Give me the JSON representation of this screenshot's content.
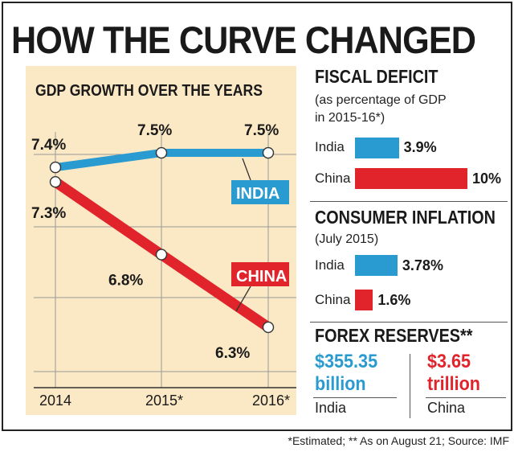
{
  "title": "HOW THE CURVE CHANGED",
  "footnote": "*Estimated; ** As on August 21; Source: IMF",
  "colors": {
    "india": "#2a9bd0",
    "china": "#e1242b",
    "panel": "#fbe8c4"
  },
  "chart_data": [
    {
      "type": "line",
      "title": "GDP GROWTH OVER THE YEARS",
      "categories": [
        "2014",
        "2015",
        "2016"
      ],
      "category_labels": [
        "2014",
        "2015*",
        "2016*"
      ],
      "ylim": [
        6.2,
        7.55
      ],
      "grid": true,
      "series": [
        {
          "name": "INDIA",
          "values": [
            7.4,
            7.5,
            7.5
          ],
          "labels": [
            "7.4%",
            "7.5%",
            "7.5%"
          ]
        },
        {
          "name": "CHINA",
          "values": [
            7.3,
            6.8,
            6.3
          ],
          "labels": [
            "7.3%",
            "6.8%",
            "6.3%"
          ]
        }
      ]
    },
    {
      "type": "bar",
      "title": "FISCAL DEFICIT",
      "subtitle_lines": [
        "(as percentage of GDP",
        "in 2015-16*)"
      ],
      "categories": [
        "India",
        "China"
      ],
      "values": [
        3.9,
        10
      ],
      "value_labels": [
        "3.9%",
        "10%"
      ]
    },
    {
      "type": "bar",
      "title": "CONSUMER INFLATION",
      "subtitle": "(July 2015)",
      "categories": [
        "India",
        "China"
      ],
      "values": [
        3.78,
        1.6
      ],
      "value_labels": [
        "3.78%",
        "1.6%"
      ]
    },
    {
      "type": "table",
      "title": "FOREX RESERVES**",
      "entries": [
        {
          "country": "India",
          "amount": "$355.35",
          "unit": "billion"
        },
        {
          "country": "China",
          "amount": "$3.65",
          "unit": "trillion"
        }
      ]
    }
  ]
}
